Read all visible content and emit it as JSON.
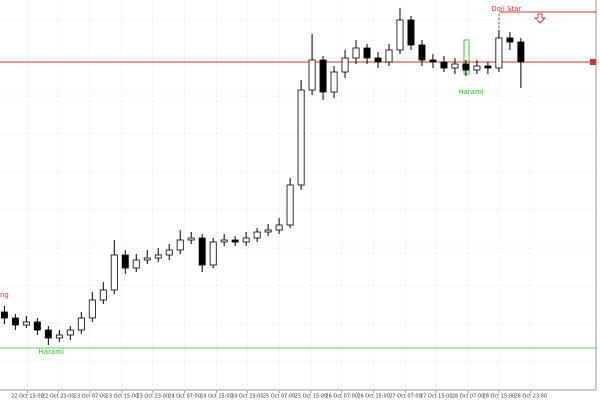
{
  "chart_data": {
    "type": "candlestick",
    "open": [
      78,
      72,
      65,
      68,
      60,
      52,
      55,
      60,
      72,
      90,
      100,
      135,
      122,
      130,
      132,
      135,
      140,
      150,
      152,
      125,
      148,
      150,
      148,
      152,
      158,
      160,
      165,
      205,
      300,
      330,
      298,
      318,
      332,
      342,
      332,
      328,
      340,
      370,
      345,
      330,
      328,
      322,
      326,
      320,
      324,
      322,
      352,
      348
    ],
    "high": [
      84,
      76,
      74,
      72,
      64,
      60,
      64,
      78,
      98,
      108,
      150,
      140,
      136,
      140,
      142,
      146,
      160,
      158,
      156,
      152,
      156,
      154,
      158,
      162,
      166,
      172,
      212,
      310,
      356,
      334,
      324,
      340,
      350,
      346,
      338,
      346,
      382,
      374,
      350,
      336,
      334,
      332,
      330,
      330,
      328,
      360,
      358,
      352
    ],
    "low": [
      66,
      60,
      62,
      55,
      45,
      48,
      50,
      56,
      68,
      86,
      96,
      116,
      118,
      126,
      128,
      130,
      136,
      146,
      118,
      122,
      144,
      144,
      144,
      148,
      154,
      156,
      162,
      200,
      295,
      290,
      292,
      312,
      326,
      326,
      322,
      324,
      336,
      340,
      324,
      322,
      318,
      316,
      314,
      316,
      316,
      318,
      340,
      302
    ],
    "close": [
      72,
      65,
      68,
      60,
      52,
      55,
      60,
      72,
      90,
      100,
      135,
      122,
      130,
      132,
      135,
      140,
      150,
      152,
      125,
      148,
      150,
      148,
      152,
      158,
      160,
      165,
      205,
      300,
      330,
      298,
      318,
      332,
      342,
      332,
      328,
      340,
      370,
      345,
      330,
      328,
      322,
      326,
      320,
      324,
      322,
      352,
      348,
      328
    ],
    "up_color": "#ffffff",
    "down_color": "#000000",
    "edge_color": "#000000",
    "xlim": [
      -0.4,
      54.2
    ],
    "ylim": [
      0,
      390
    ],
    "xticks": [
      {
        "value": 2.1,
        "label": "22 Oct 15:00"
      },
      {
        "value": 4.9,
        "label": "22 Oct 23:00"
      },
      {
        "value": 7.8,
        "label": "23 Oct 07:00"
      },
      {
        "value": 10.7,
        "label": "23 Oct 15:00"
      },
      {
        "value": 13.5,
        "label": "23 Oct 23:00"
      },
      {
        "value": 16.4,
        "label": "24 Oct 07:00"
      },
      {
        "value": 19.3,
        "label": "24 Oct 15:00"
      },
      {
        "value": 22.1,
        "label": "24 Oct 23:00"
      },
      {
        "value": 25,
        "label": "25 Oct 07:00"
      },
      {
        "value": 27.9,
        "label": "25 Oct 15:00"
      },
      {
        "value": 30.7,
        "label": "26 Oct 07:00"
      },
      {
        "value": 33.6,
        "label": "26 Oct 15:00"
      },
      {
        "value": 36.5,
        "label": "27 Oct 07:00"
      },
      {
        "value": 39.3,
        "label": "27 Oct 15:00"
      },
      {
        "value": 42.2,
        "label": "28 Oct 07:00"
      },
      {
        "value": 45,
        "label": "28 Oct 15:00"
      },
      {
        "value": 47.9,
        "label": "28 Oct 23:00"
      }
    ],
    "grid": true,
    "hlines": [
      {
        "value": 328,
        "color": "#cc3333"
      },
      {
        "value": 42,
        "color": "#66cc66"
      }
    ],
    "annotations": [
      {
        "text": "Doji Star",
        "x": 44.3,
        "y": 381,
        "color": "#dd3333"
      },
      {
        "text": "Harami",
        "x": 41.3,
        "y": 298,
        "color": "#33bb33"
      },
      {
        "text": "Harami",
        "x": 3.1,
        "y": 38,
        "color": "#33bb33"
      },
      {
        "text": "ng",
        "x": -0.4,
        "y": 95,
        "color": "#dd3333"
      }
    ]
  }
}
